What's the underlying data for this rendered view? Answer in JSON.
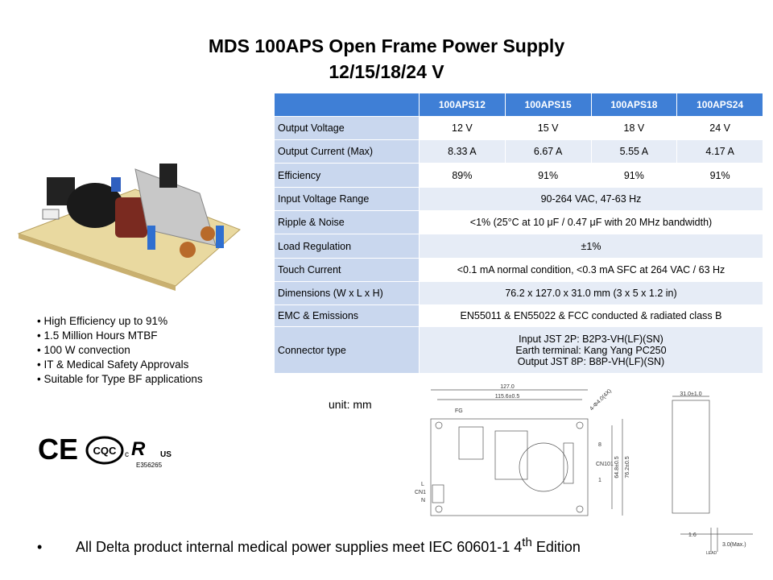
{
  "title": {
    "line1": "MDS 100APS Open Frame Power Supply",
    "line2": "12/15/18/24 V"
  },
  "table": {
    "columns": [
      "100APS12",
      "100APS15",
      "100APS18",
      "100APS24"
    ],
    "rows": [
      {
        "label": "Output Voltage",
        "cells": [
          "12 V",
          "15 V",
          "18 V",
          "24 V"
        ]
      },
      {
        "label": "Output Current (Max)",
        "cells": [
          "8.33 A",
          "6.67 A",
          "5.55 A",
          "4.17 A"
        ]
      },
      {
        "label": "Efficiency",
        "cells": [
          "89%",
          "91%",
          "91%",
          "91%"
        ]
      },
      {
        "label": "Input Voltage Range",
        "cells": [
          "90-264 VAC, 47-63 Hz"
        ]
      },
      {
        "label": "Ripple & Noise",
        "cells": [
          "<1% (25°C at 10 μF / 0.47 μF with 20 MHz bandwidth)"
        ]
      },
      {
        "label": "Load Regulation",
        "cells": [
          "±1%"
        ]
      },
      {
        "label": "Touch Current",
        "cells": [
          "<0.1 mA normal condition, <0.3 mA SFC at 264 VAC / 63 Hz"
        ]
      },
      {
        "label": "Dimensions (W x L x H)",
        "cells": [
          "76.2 x 127.0 x 31.0 mm (3 x 5 x 1.2 in)"
        ]
      },
      {
        "label": "EMC & Emissions",
        "cells": [
          "EN55011 & EN55022 & FCC conducted & radiated class B"
        ]
      },
      {
        "label": "Connector type",
        "lines": [
          "Input JST 2P: B2P3-VH(LF)(SN)",
          "Earth terminal: Kang Yang PC250",
          "Output JST 8P: B8P-VH(LF)(SN)"
        ]
      }
    ]
  },
  "features": [
    "High Efficiency up to 91%",
    "1.5 Million Hours MTBF",
    "100 W convection",
    "IT & Medical Safety Approvals",
    "Suitable for Type BF applications"
  ],
  "certifications": {
    "ce": "CE",
    "cqc": "CQC",
    "ul_c": "c",
    "ul_us": "US",
    "ul_file": "E356265"
  },
  "unit": "unit: mm",
  "drawing": {
    "length": "127.0",
    "pitch": "115.6±0.5",
    "fg": "FG",
    "holes": "4-Φ4.0(4X)",
    "cn101": "CN101",
    "pin8": "8",
    "pin1": "1",
    "pitch_w": "64.8±0.5",
    "width": "76.2±0.5",
    "l": "L",
    "cn1": "CN1",
    "n": "N",
    "height": "31.0±1.0",
    "board": "1.6",
    "lead_len": "3.0(Max.)",
    "lead": "LEAD"
  },
  "footer": {
    "bullet": "•",
    "text": "All Delta product internal medical power supplies meet IEC 60601-1 4",
    "sup": "th",
    "tail": "Edition"
  }
}
